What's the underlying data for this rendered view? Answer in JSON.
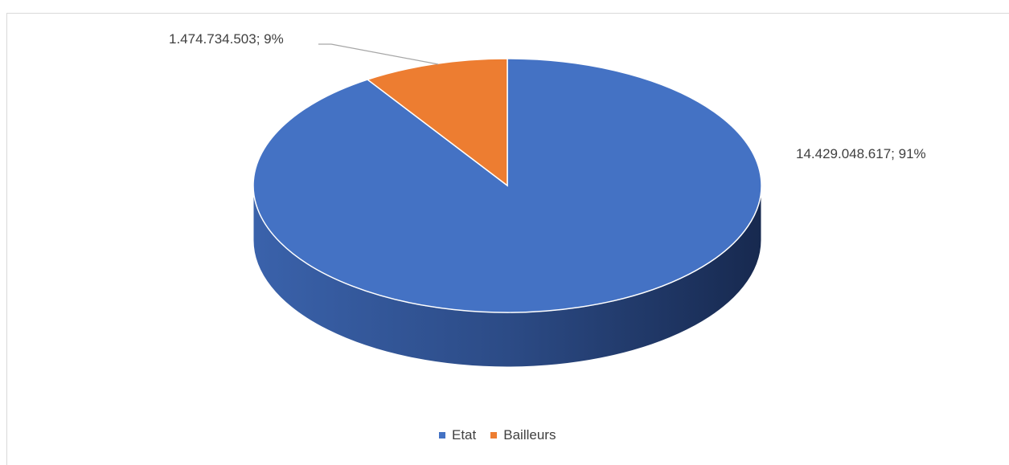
{
  "chart_data": {
    "type": "pie",
    "title": "",
    "slices": [
      {
        "name": "Etat",
        "value": 14429048617,
        "value_label": "14.429.048.617",
        "percent": 91,
        "label": "14.429.048.617; 91%",
        "color": "#4472c4"
      },
      {
        "name": "Bailleurs",
        "value": 1474734503,
        "value_label": "1.474.734.503",
        "percent": 9,
        "label": "1.474.734.503; 9%",
        "color": "#ed7d31"
      }
    ],
    "legend": {
      "placement": "bottom",
      "items": [
        "Etat",
        "Bailleurs"
      ]
    }
  }
}
